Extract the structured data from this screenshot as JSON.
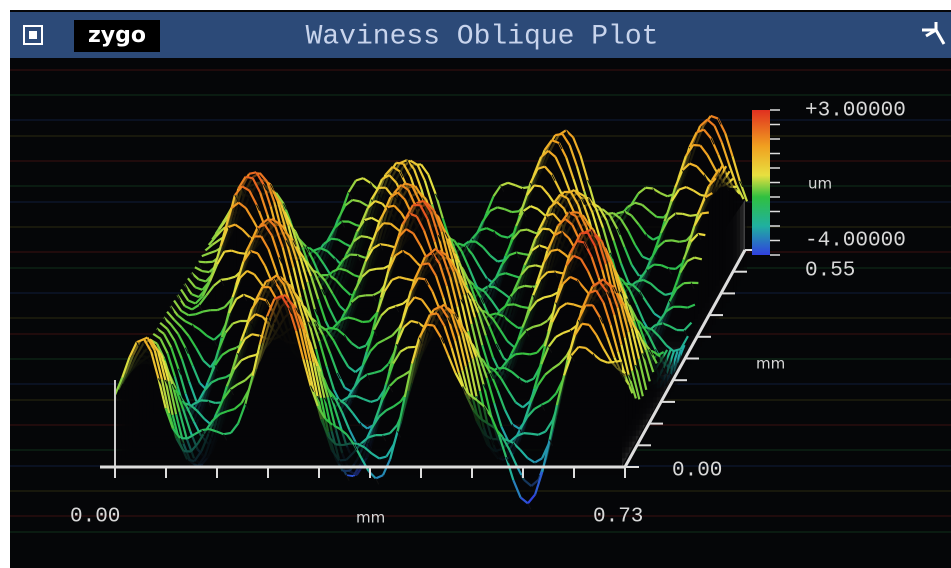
{
  "window": {
    "logo": "zygo",
    "title": "Waviness Oblique Plot"
  },
  "colorbar": {
    "max": "+3.00000",
    "unit": "um",
    "min": "-4.00000"
  },
  "y_axis": {
    "max": "0.55",
    "unit": "mm",
    "min": "0.00"
  },
  "x_axis": {
    "min": "0.00",
    "unit": "mm",
    "max": "0.73"
  }
}
